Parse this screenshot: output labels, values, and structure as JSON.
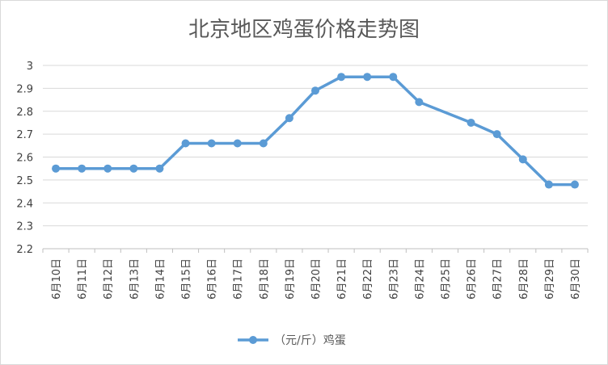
{
  "chart_data": {
    "type": "line",
    "title": "北京地区鸡蛋价格走势图",
    "categories": [
      "6月10日",
      "6月11日",
      "6月12日",
      "6月13日",
      "6月14日",
      "6月15日",
      "6月16日",
      "6月17日",
      "6月18日",
      "6月19日",
      "6月20日",
      "6月21日",
      "6月22日",
      "6月23日",
      "6月24日",
      "6月25日",
      "6月26日",
      "6月27日",
      "6月28日",
      "6月29日",
      "6月30日"
    ],
    "series": [
      {
        "name": "（元/斤）鸡蛋",
        "values": [
          2.55,
          2.55,
          2.55,
          2.55,
          2.55,
          2.66,
          2.66,
          2.66,
          2.66,
          2.77,
          2.89,
          2.95,
          2.95,
          2.95,
          2.84,
          null,
          2.75,
          2.7,
          2.59,
          2.48,
          2.48
        ],
        "color": "#5B9BD5"
      }
    ],
    "ylim": [
      2.2,
      3.0
    ],
    "yticks": [
      "2.2",
      "2.3",
      "2.4",
      "2.5",
      "2.6",
      "2.7",
      "2.8",
      "2.9",
      "3"
    ],
    "grid": true,
    "legend_position": "bottom"
  }
}
